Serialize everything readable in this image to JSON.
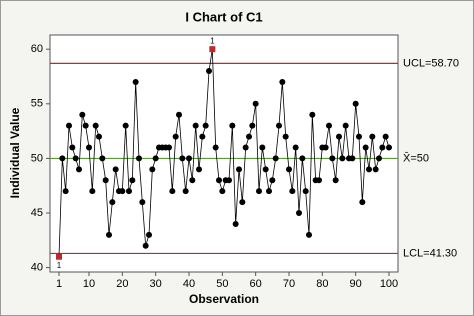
{
  "chart_data": {
    "type": "ichart",
    "title": "I Chart of C1",
    "x_label": "Observation",
    "y_label": "Individual Value",
    "x": [
      1,
      2,
      3,
      4,
      5,
      6,
      7,
      8,
      9,
      10,
      11,
      12,
      13,
      14,
      15,
      16,
      17,
      18,
      19,
      20,
      21,
      22,
      23,
      24,
      25,
      26,
      27,
      28,
      29,
      30,
      31,
      32,
      33,
      34,
      35,
      36,
      37,
      38,
      39,
      40,
      41,
      42,
      43,
      44,
      45,
      46,
      47,
      48,
      49,
      50,
      51,
      52,
      53,
      54,
      55,
      56,
      57,
      58,
      59,
      60,
      61,
      62,
      63,
      64,
      65,
      66,
      67,
      68,
      69,
      70,
      71,
      72,
      73,
      74,
      75,
      76,
      77,
      78,
      79,
      80,
      81,
      82,
      83,
      84,
      85,
      86,
      87,
      88,
      89,
      90,
      91,
      92,
      93,
      94,
      95,
      96,
      97,
      98,
      99,
      100
    ],
    "values": [
      41,
      50,
      47,
      53,
      51,
      50,
      49,
      54,
      53,
      51,
      47,
      53,
      52,
      50,
      48,
      43,
      46,
      49,
      47,
      47,
      53,
      47,
      48,
      57,
      50,
      46,
      42,
      43,
      49,
      50,
      51,
      51,
      51,
      51,
      47,
      52,
      54,
      50,
      47,
      50,
      48,
      53,
      49,
      52,
      53,
      58,
      60,
      51,
      48,
      47,
      48,
      48,
      53,
      44,
      49,
      46,
      51,
      52,
      53,
      55,
      47,
      51,
      49,
      47,
      48,
      50,
      53,
      57,
      52,
      49,
      47,
      51,
      45,
      50,
      47,
      43,
      54,
      48,
      48,
      51,
      51,
      53,
      50,
      48,
      52,
      50,
      53,
      50,
      50,
      55,
      52,
      46,
      51,
      49,
      52,
      49,
      50,
      51,
      52,
      51
    ],
    "color": "#000000",
    "flag_color": "#c0282d",
    "flagged": [
      {
        "x": 1,
        "label": "1"
      },
      {
        "x": 47,
        "label": "1"
      }
    ],
    "control_lines": [
      {
        "label": "UCL=58.70",
        "value": 58.7,
        "color": "#c0282d"
      },
      {
        "label": "X̄=50",
        "value": 50,
        "color": "#5a9a3a"
      },
      {
        "label": "LCL=41.30",
        "value": 41.3,
        "color": "#c0282d"
      }
    ],
    "xlim": [
      -1.7,
      102.7
    ],
    "ylim": [
      39.6,
      61.3
    ],
    "xticks": [
      1,
      10,
      20,
      30,
      40,
      50,
      60,
      70,
      80,
      90,
      100
    ],
    "yticks": [
      40,
      45,
      50,
      55,
      60
    ]
  }
}
